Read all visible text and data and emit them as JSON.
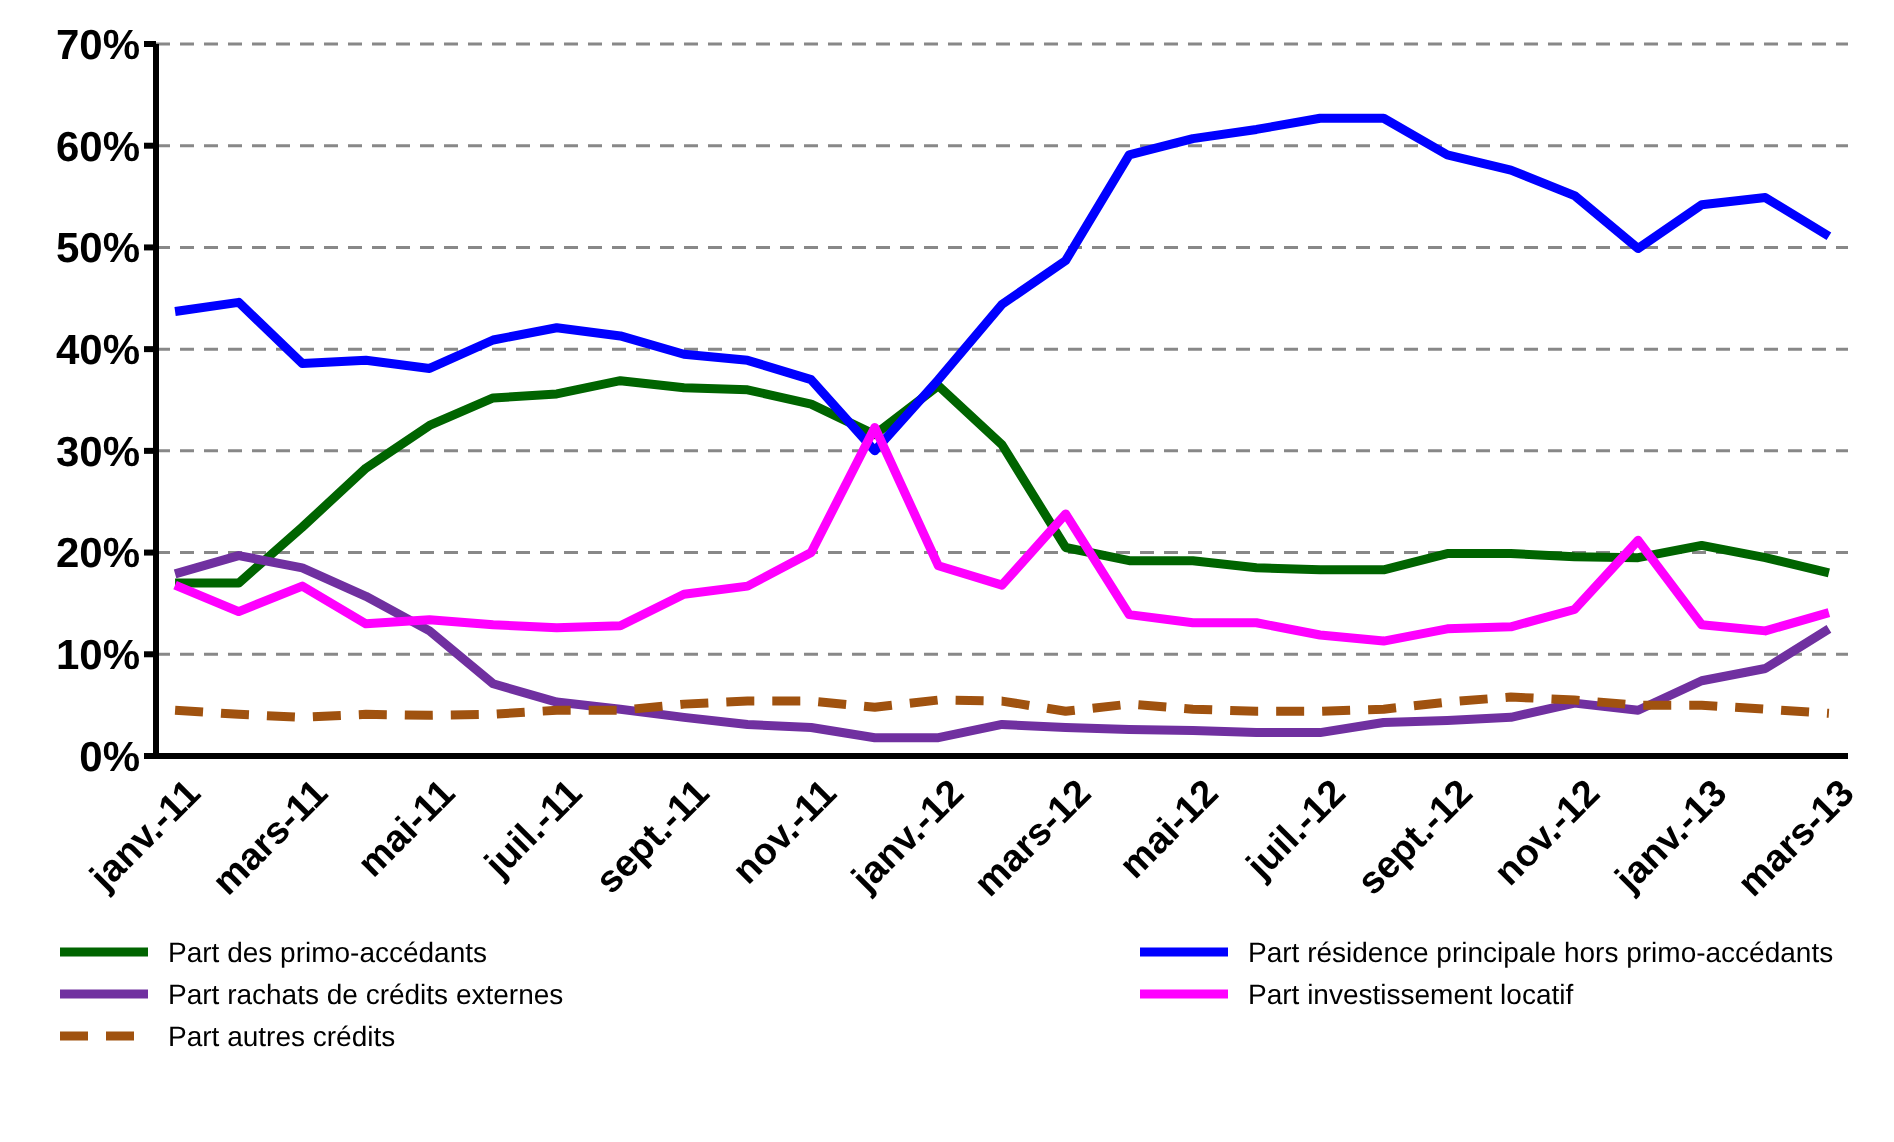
{
  "chart_data": {
    "type": "line",
    "categories": [
      "janv.-11",
      null,
      "mars-11",
      null,
      "mai-11",
      null,
      "juil.-11",
      null,
      "sept.-11",
      null,
      "nov.-11",
      null,
      "janv.-12",
      null,
      "mars-12",
      null,
      "mai-12",
      null,
      "juil.-12",
      null,
      "sept.-12",
      null,
      "nov.-12",
      null,
      "janv.-13",
      null,
      "mars-13"
    ],
    "series": [
      {
        "name": "Part des primo-accédants",
        "color": "#006400",
        "line_style": "solid",
        "values": [
          17.0,
          17.0,
          22.5,
          28.3,
          32.5,
          35.2,
          35.6,
          36.9,
          36.2,
          36.0,
          34.6,
          31.6,
          36.4,
          30.6,
          20.5,
          19.2,
          19.2,
          18.5,
          18.3,
          18.3,
          19.9,
          19.9,
          19.6,
          19.5,
          20.7,
          19.5,
          18.0
        ]
      },
      {
        "name": "Part résidence principale hors primo-accédants",
        "color": "#0000ff",
        "line_style": "solid",
        "values": [
          43.7,
          44.6,
          38.6,
          38.9,
          38.1,
          40.9,
          42.1,
          41.3,
          39.5,
          38.9,
          37.0,
          30.0,
          37.0,
          44.4,
          48.7,
          59.1,
          60.7,
          61.6,
          62.7,
          62.7,
          59.1,
          57.6,
          55.1,
          49.9,
          54.2,
          54.9,
          51.1
        ]
      },
      {
        "name": "Part rachats de crédits externes",
        "color": "#7030a0",
        "line_style": "solid",
        "values": [
          17.9,
          19.7,
          18.5,
          15.7,
          12.3,
          7.1,
          5.3,
          4.6,
          3.8,
          3.1,
          2.8,
          1.8,
          1.8,
          3.1,
          2.8,
          2.6,
          2.5,
          2.3,
          2.3,
          3.3,
          3.5,
          3.8,
          5.2,
          4.5,
          7.4,
          8.6,
          12.5
        ]
      },
      {
        "name": "Part investissement locatif",
        "color": "#ff00ff",
        "line_style": "solid",
        "values": [
          16.8,
          14.2,
          16.7,
          13.0,
          13.4,
          12.9,
          12.6,
          12.8,
          15.9,
          16.7,
          20.0,
          32.3,
          18.7,
          16.8,
          23.8,
          13.9,
          13.1,
          13.1,
          11.9,
          11.3,
          12.5,
          12.7,
          14.4,
          21.2,
          12.9,
          12.3,
          14.1
        ]
      },
      {
        "name": "Part autres crédits",
        "color": "#a0520f",
        "line_style": "dashed",
        "values": [
          4.5,
          4.1,
          3.8,
          4.1,
          4.0,
          4.1,
          4.5,
          4.5,
          5.1,
          5.4,
          5.4,
          4.8,
          5.5,
          5.4,
          4.4,
          5.1,
          4.6,
          4.4,
          4.4,
          4.6,
          5.3,
          5.8,
          5.5,
          5.0,
          5.0,
          4.6,
          4.2
        ]
      }
    ],
    "ylim": [
      0,
      70
    ],
    "yticks": [
      {
        "value": 0,
        "label": "0%"
      },
      {
        "value": 10,
        "label": "10%"
      },
      {
        "value": 20,
        "label": "20%"
      },
      {
        "value": 30,
        "label": "30%"
      },
      {
        "value": 40,
        "label": "40%"
      },
      {
        "value": 50,
        "label": "50%"
      },
      {
        "value": 60,
        "label": "60%"
      },
      {
        "value": 70,
        "label": "70%"
      }
    ],
    "grid": "y",
    "legend": "bottom",
    "marker": "none"
  }
}
